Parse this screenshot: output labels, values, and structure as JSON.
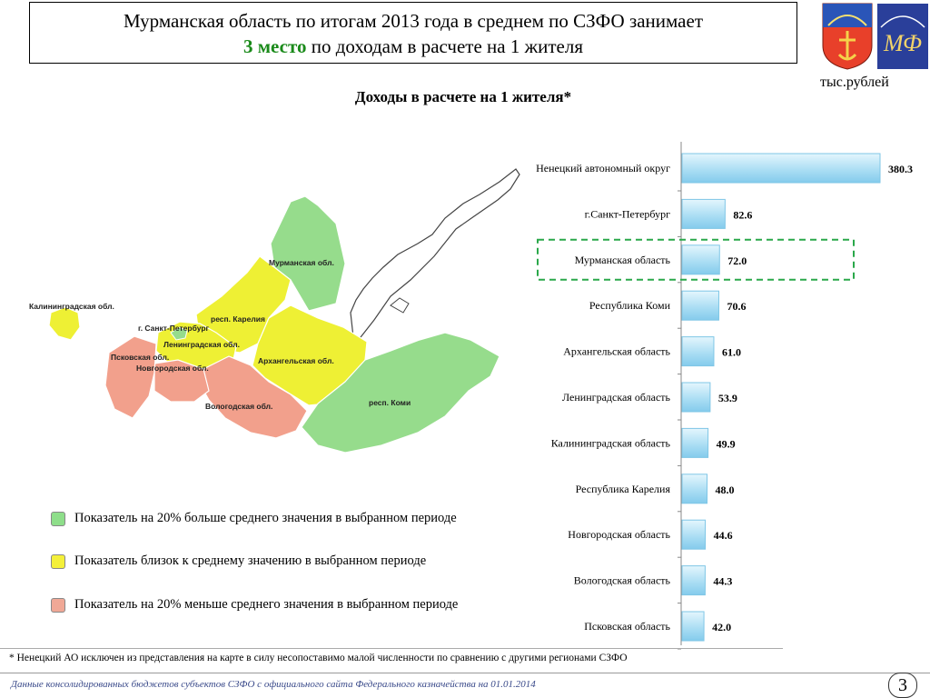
{
  "header": {
    "title_line1": "Мурманская область по итогам 2013 года в среднем по СЗФО занимает",
    "title_highlight": "3 место",
    "title_line2_rest": " по доходам в расчете на 1 жителя"
  },
  "unit_label": "тыс.рублей",
  "chart_data": {
    "type": "bar",
    "orientation": "horizontal",
    "title": "Доходы в расчете на 1 жителя*",
    "categories": [
      "Ненецкий автономный округ",
      "г.Санкт-Петербург",
      "Мурманская область",
      "Республика Коми",
      "Архангельская область",
      "Ленинградская область",
      "Калининградская область",
      "Республика Карелия",
      "Новгородская область",
      "Вологодская область",
      "Псковская область"
    ],
    "values": [
      380.3,
      82.6,
      72.0,
      70.6,
      61.0,
      53.9,
      49.9,
      48.0,
      44.6,
      44.3,
      42.0
    ],
    "value_labels": [
      "380.3",
      "82.6",
      "72.0",
      "70.6",
      "61.0",
      "53.9",
      "49.9",
      "48.0",
      "44.6",
      "44.3",
      "42.0"
    ],
    "highlighted_category": "Мурманская область",
    "bar_color": "#bfe6f7",
    "highlight_color": "#2aa84a",
    "xlim": [
      0,
      380.3
    ]
  },
  "map": {
    "labels": {
      "murmansk": "Мурманская обл.",
      "karelia": "респ. Карелия",
      "spb": "г. Санкт-Петербург",
      "leningrad": "Ленинградская обл.",
      "kaliningrad": "Калининградская обл.",
      "pskov": "Псковская обл.",
      "novgorod": "Новгородская обл.",
      "arkhangelsk": "Архангельская обл.",
      "vologda": "Вологодская обл.",
      "komi": "респ. Коми"
    },
    "colors": {
      "green": "#96dc8c",
      "yellow": "#eef034",
      "red": "#f2a08c"
    }
  },
  "legend": [
    {
      "text": "Показатель на 20% больше среднего значения в выбранном периоде",
      "color": "#8ede8a"
    },
    {
      "text": "Показатель близок к среднему значению в выбранном периоде",
      "color": "#f4f03a"
    },
    {
      "text": "Показатель на 20% меньше среднего значения в выбранном периоде",
      "color": "#f0a896"
    }
  ],
  "footnote": "* Ненецкий АО исключен из представления на карте в силу несопоставимо малой численности по сравнению с другими регионами СЗФО",
  "source": "Данные консолидированных бюджетов субъектов СЗФО с официального сайта Федерального казначейства на 01.01.2014",
  "page_number": "3"
}
